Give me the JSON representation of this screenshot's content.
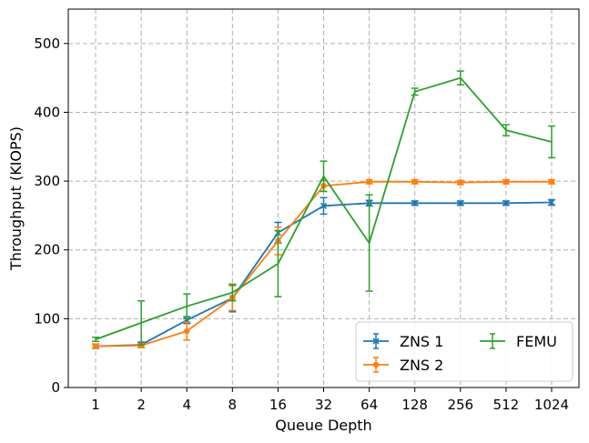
{
  "chart_data": {
    "type": "line",
    "title": "",
    "xlabel": "Queue Depth",
    "ylabel": "Throughput (KIOPS)",
    "categories": [
      "1",
      "2",
      "4",
      "8",
      "16",
      "32",
      "64",
      "128",
      "256",
      "512",
      "1024"
    ],
    "ylim": [
      0,
      550
    ],
    "yticks": [
      0,
      100,
      200,
      300,
      400,
      500
    ],
    "grid": true,
    "legend_position": "bottom-right",
    "series": [
      {
        "name": "ZNS 1",
        "color": "#1f77b4",
        "marker": "x",
        "values": [
          60,
          62,
          98,
          130,
          225,
          264,
          268,
          268,
          268,
          268,
          269
        ],
        "errors": [
          3,
          4,
          5,
          20,
          15,
          12,
          4,
          3,
          3,
          3,
          4
        ]
      },
      {
        "name": "ZNS 2",
        "color": "#ff7f0e",
        "marker": "circle",
        "values": [
          60,
          61,
          82,
          130,
          213,
          293,
          299,
          299,
          298,
          299,
          299
        ],
        "errors": [
          3,
          3,
          13,
          18,
          20,
          8,
          3,
          3,
          3,
          3,
          3
        ]
      },
      {
        "name": "FEMU",
        "color": "#2ca02c",
        "marker": "none",
        "values": [
          70,
          94,
          118,
          138,
          180,
          307,
          210,
          430,
          450,
          374,
          357
        ],
        "errors": [
          3,
          32,
          18,
          12,
          48,
          22,
          70,
          5,
          10,
          8,
          23
        ]
      }
    ]
  }
}
